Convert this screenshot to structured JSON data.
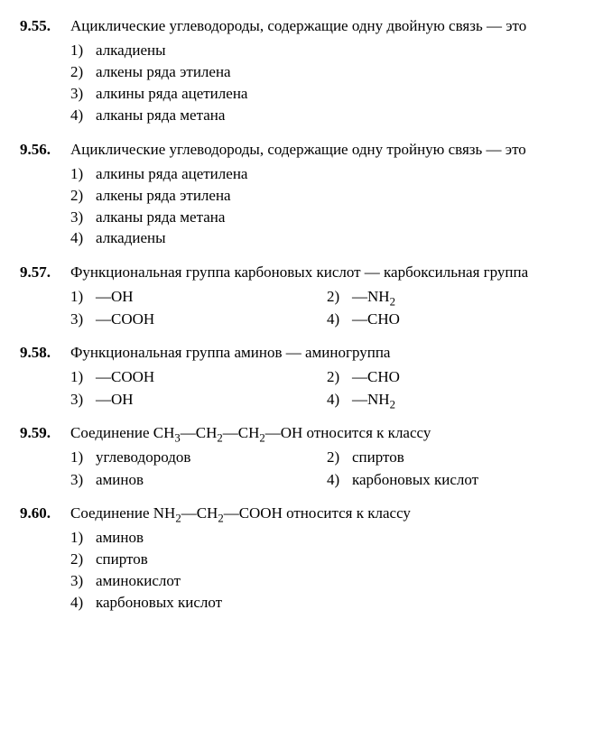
{
  "questions": [
    {
      "number": "9.55.",
      "text": "Ациклические углеводороды, содержащие одну двойную связь — это",
      "layout": "1col",
      "options": [
        {
          "n": "1)",
          "t": "алкадиены"
        },
        {
          "n": "2)",
          "t": "алкены ряда этилена"
        },
        {
          "n": "3)",
          "t": "алкины ряда ацетилена"
        },
        {
          "n": "4)",
          "t": "алканы ряда метана"
        }
      ]
    },
    {
      "number": "9.56.",
      "text": "Ациклические углеводороды, содержащие одну тройную связь — это",
      "layout": "1col",
      "options": [
        {
          "n": "1)",
          "t": "алкины ряда ацетилена"
        },
        {
          "n": "2)",
          "t": "алкены ряда этилена"
        },
        {
          "n": "3)",
          "t": "алканы ряда метана"
        },
        {
          "n": "4)",
          "t": "алкадиены"
        }
      ]
    },
    {
      "number": "9.57.",
      "text": "Функциональная группа карбоновых кислот — карбоксильная группа",
      "layout": "2col",
      "options": [
        {
          "n": "1)",
          "t": "—OH"
        },
        {
          "n": "2)",
          "t": "—NH<sub>2</sub>"
        },
        {
          "n": "3)",
          "t": "—COOH"
        },
        {
          "n": "4)",
          "t": "—CHO"
        }
      ]
    },
    {
      "number": "9.58.",
      "text": "Функциональная группа аминов — аминогруппа",
      "layout": "2col",
      "options": [
        {
          "n": "1)",
          "t": "—COOH"
        },
        {
          "n": "2)",
          "t": "—CHO"
        },
        {
          "n": "3)",
          "t": "—OH"
        },
        {
          "n": "4)",
          "t": "—NH<sub>2</sub>"
        }
      ]
    },
    {
      "number": "9.59.",
      "text": "Соединение CH<sub>3</sub>—CH<sub>2</sub>—CH<sub>2</sub>—OH относится к классу",
      "layout": "2col",
      "options": [
        {
          "n": "1)",
          "t": "углеводородов"
        },
        {
          "n": "2)",
          "t": "спиртов"
        },
        {
          "n": "3)",
          "t": "аминов"
        },
        {
          "n": "4)",
          "t": "карбоновых кислот"
        }
      ]
    },
    {
      "number": "9.60.",
      "text": "Соединение NH<sub>2</sub>—CH<sub>2</sub>—COOH относится к классу",
      "layout": "1col",
      "options": [
        {
          "n": "1)",
          "t": "аминов"
        },
        {
          "n": "2)",
          "t": "спиртов"
        },
        {
          "n": "3)",
          "t": "аминокислот"
        },
        {
          "n": "4)",
          "t": "карбоновых кислот"
        }
      ]
    }
  ]
}
